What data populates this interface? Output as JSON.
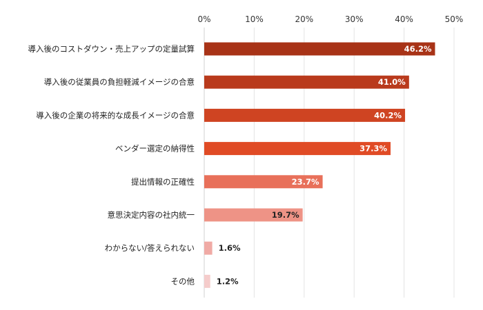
{
  "chart_data": {
    "type": "bar",
    "orientation": "horizontal",
    "categories": [
      "導入後のコストダウン・売上アップの定量試算",
      "導入後の従業員の負担軽減イメージの合意",
      "導入後の企業の将来的な成長イメージの合意",
      "ベンダー選定の納得性",
      "提出情報の正確性",
      "意思決定内容の社内統一",
      "わからない/答えられない",
      "その他"
    ],
    "values": [
      46.2,
      41.0,
      40.2,
      37.3,
      23.7,
      19.7,
      1.6,
      1.2
    ],
    "data_labels": [
      "46.2%",
      "41.0%",
      "40.2%",
      "37.3%",
      "23.7%",
      "19.7%",
      "1.6%",
      "1.2%"
    ],
    "colors": [
      "#a83317",
      "#b93a1c",
      "#cf4422",
      "#e04b25",
      "#e8705a",
      "#ee9386",
      "#f0aaa5",
      "#f5cccb"
    ],
    "label_colors": [
      "#ffffff",
      "#ffffff",
      "#ffffff",
      "#ffffff",
      "#ffffff",
      "#222222",
      "#222222",
      "#222222"
    ],
    "xlim": [
      0,
      50
    ],
    "x_ticks": [
      "0%",
      "10%",
      "20%",
      "30%",
      "40%",
      "50%"
    ],
    "x_axis_position": "top",
    "grid": true,
    "title": "",
    "xlabel": "",
    "ylabel": ""
  }
}
